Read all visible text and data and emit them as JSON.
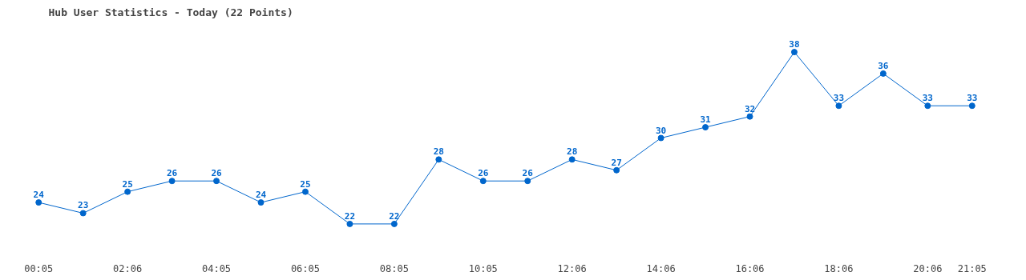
{
  "chart_data": {
    "type": "line",
    "title": "Hub User Statistics - Today (22 Points)",
    "categories": [
      "00:05",
      null,
      "02:06",
      null,
      "04:05",
      null,
      "06:05",
      null,
      "08:05",
      null,
      "10:05",
      null,
      "12:06",
      null,
      "14:06",
      null,
      "16:06",
      null,
      "18:06",
      null,
      "20:06",
      "21:05"
    ],
    "series": [
      {
        "color": "#0066cc",
        "values": [
          24,
          23,
          25,
          26,
          26,
          24,
          25,
          22,
          22,
          28,
          26,
          26,
          28,
          27,
          30,
          31,
          32,
          38,
          33,
          36,
          33,
          33
        ]
      }
    ],
    "data_labels": true,
    "marker": "circle",
    "line_style": "solid",
    "grid": false,
    "tick_labels": "x"
  }
}
